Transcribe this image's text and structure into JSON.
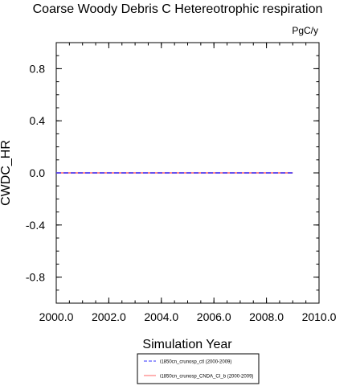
{
  "chart_data": {
    "type": "line",
    "title": "Coarse Woody Debris C Hetereotrophic respiration",
    "units": "PgC/y",
    "xlabel": "Simulation Year",
    "ylabel": "CWDC_HR",
    "xlim": [
      2000.0,
      2010.0
    ],
    "ylim": [
      -1.0,
      1.0
    ],
    "xticks": [
      2000.0,
      2002.0,
      2004.0,
      2006.0,
      2008.0,
      2010.0
    ],
    "xtick_labels": [
      "2000.0",
      "2002.0",
      "2004.0",
      "2006.0",
      "2008.0",
      "2010.0"
    ],
    "yticks": [
      -0.8,
      -0.4,
      0.0,
      0.4,
      0.8
    ],
    "ytick_labels": [
      "-0.8",
      "-0.4",
      "0.0",
      "0.4",
      "0.8"
    ],
    "grid": false,
    "legend_position": "bottom",
    "x": [
      2000,
      2001,
      2002,
      2003,
      2004,
      2005,
      2006,
      2007,
      2008,
      2009
    ],
    "series": [
      {
        "name": "i1850cn_crunosp_ctl (2000-2009)",
        "color": "#3333ff",
        "dash": "dashed",
        "values": [
          0,
          0,
          0,
          0,
          0,
          0,
          0,
          0,
          0,
          0
        ]
      },
      {
        "name": "i1850cn_crunosp_CNDA_CI_b (2000-2009)",
        "color": "#ff6666",
        "dash": "solid",
        "values": [
          0,
          0,
          0,
          0,
          0,
          0,
          0,
          0,
          0,
          0
        ]
      }
    ]
  }
}
